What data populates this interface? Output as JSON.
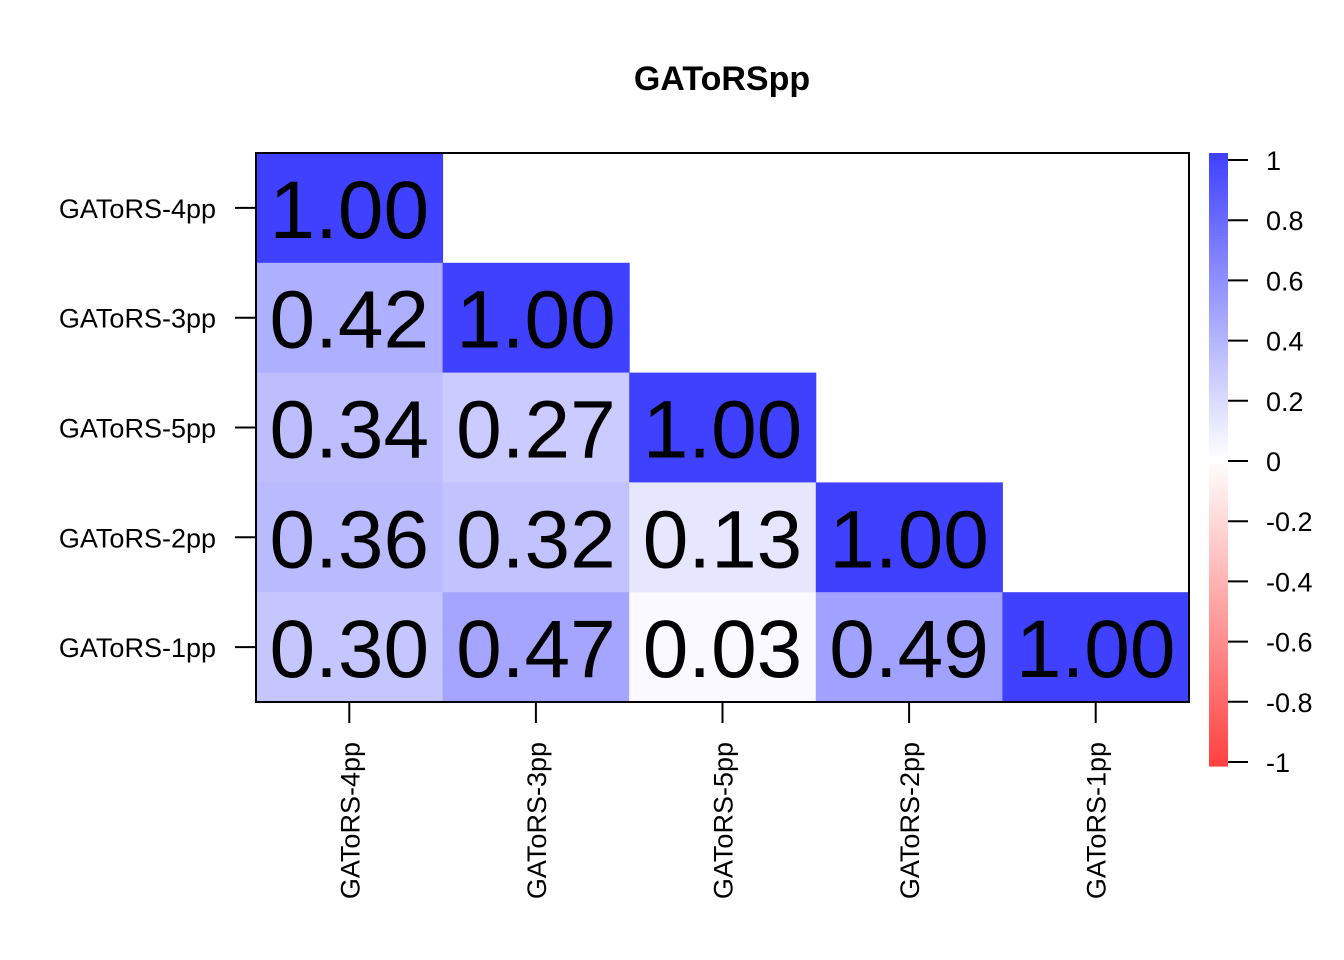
{
  "chart_data": {
    "type": "heatmap",
    "title": "GAToRSpp",
    "row_labels": [
      "GAToRS-4pp",
      "GAToRS-3pp",
      "GAToRS-5pp",
      "GAToRS-2pp",
      "GAToRS-1pp"
    ],
    "col_labels": [
      "GAToRS-4pp",
      "GAToRS-3pp",
      "GAToRS-5pp",
      "GAToRS-2pp",
      "GAToRS-1pp"
    ],
    "matrix": [
      [
        1.0,
        null,
        null,
        null,
        null
      ],
      [
        0.42,
        1.0,
        null,
        null,
        null
      ],
      [
        0.34,
        0.27,
        1.0,
        null,
        null
      ],
      [
        0.36,
        0.32,
        0.13,
        1.0,
        null
      ],
      [
        0.3,
        0.47,
        0.03,
        0.49,
        1.0
      ]
    ],
    "display_labels": [
      [
        "1.00",
        "",
        "",
        "",
        ""
      ],
      [
        "0.42",
        "1.00",
        "",
        "",
        ""
      ],
      [
        "0.34",
        "0.27",
        "1.00",
        "",
        ""
      ],
      [
        "0.36",
        "0.32",
        "0.13",
        "1.00",
        ""
      ],
      [
        "0.30",
        "0.47",
        "0.03",
        "0.49",
        "1.00"
      ]
    ],
    "color_scale": {
      "min": -1,
      "max": 1,
      "low_color": "#FF4040",
      "mid_color": "#FFFFFF",
      "high_color": "#4040FF",
      "ticks": [
        "1",
        "0.8",
        "0.6",
        "0.4",
        "0.2",
        "0",
        "-0.2",
        "-0.4",
        "-0.6",
        "-0.8",
        "-1"
      ],
      "tick_values": [
        1,
        0.8,
        0.6,
        0.4,
        0.2,
        0,
        -0.2,
        -0.4,
        -0.6,
        -0.8,
        -1
      ]
    }
  }
}
